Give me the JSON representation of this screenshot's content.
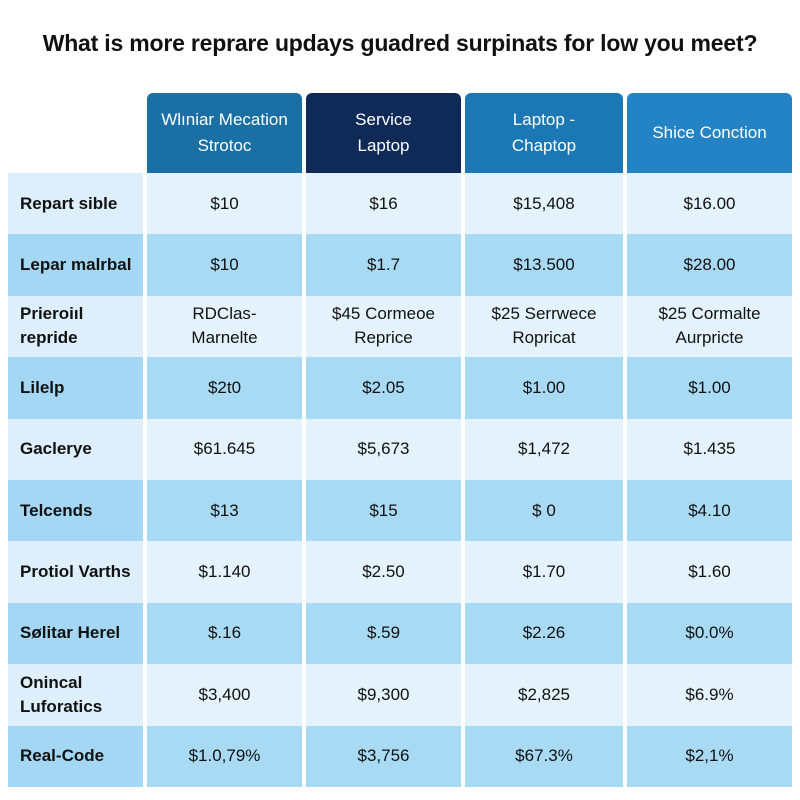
{
  "chart_data": {
    "type": "table",
    "title": "What is more reprare updays guadred surpinats for low you meet?",
    "columns": [
      {
        "label": "Wlıniar Mecation\nStrotoc",
        "color": "#1a6fa4"
      },
      {
        "label": "Service\nLaptop",
        "color": "#0f2a57"
      },
      {
        "label": "Laptop -\nChaptop",
        "color": "#1c78b4"
      },
      {
        "label": "Shice Conction",
        "color": "#2383c4"
      }
    ],
    "rows": [
      {
        "label": "Repart sible",
        "values": [
          "$10",
          "$16",
          "$15,408",
          "$16.00"
        ]
      },
      {
        "label": "Lepar malrbal",
        "values": [
          "$10",
          "$1.7",
          "$13.500",
          "$28.00"
        ]
      },
      {
        "label": "Prieroiıl\nrepride",
        "values": [
          "RDClas-\nMarnelte",
          "$45 Cormeoe\nReprice",
          "$25 Serrwece\nRopricat",
          "$25 Cormalte\nAurpricte"
        ]
      },
      {
        "label": "Lilelp",
        "values": [
          "$2t0",
          "$2.05",
          "$1.00",
          "$1.00"
        ]
      },
      {
        "label": "Gaclerye",
        "values": [
          "$61.645",
          "$5,673",
          "$1,472",
          "$1.435"
        ]
      },
      {
        "label": "Telcends",
        "values": [
          "$13",
          "$15",
          "$ 0",
          "$4.10"
        ]
      },
      {
        "label": "Protiol Varths",
        "values": [
          "$1.140",
          "$2.50",
          "$1.70",
          "$1.60"
        ]
      },
      {
        "label": "Sølitar Herel",
        "values": [
          "$.16",
          "$.59",
          "$2.26",
          "$0.0%"
        ]
      },
      {
        "label": "Onincal\nLuforatics",
        "values": [
          "$3,400",
          "$9,300",
          "$2,825",
          "$6.9%"
        ]
      },
      {
        "label": "Real-Code",
        "values": [
          "$1.0,79%",
          "$3,756",
          "$67.3%",
          "$2,1%"
        ]
      }
    ],
    "row_colors": {
      "light": "#e3f2fb",
      "dark": "#a9daf4"
    }
  }
}
